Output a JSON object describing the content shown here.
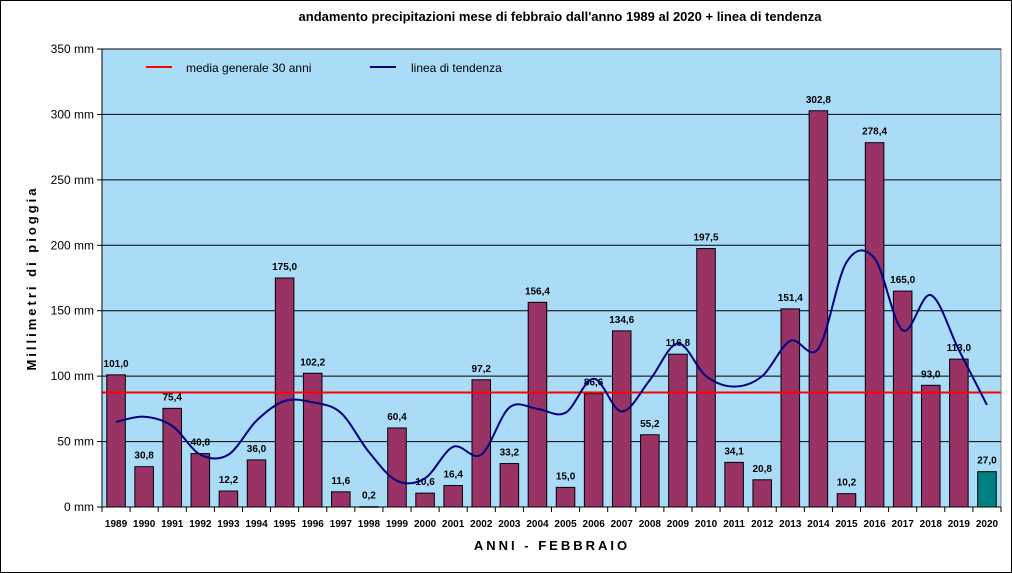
{
  "chart_data": {
    "type": "bar",
    "title": "andamento precipitazioni mese di febbraio dall'anno 1989 al 2020 + linea di tendenza",
    "xlabel": "ANNI - FEBBRAIO",
    "ylabel": "Millimetri di pioggia",
    "ylim": [
      0,
      350
    ],
    "yticks": [
      "0 mm",
      "50 mm",
      "100 mm",
      "150 mm",
      "200 mm",
      "250 mm",
      "300 mm",
      "350 mm"
    ],
    "yticks_values": [
      0,
      50,
      100,
      150,
      200,
      250,
      300,
      350
    ],
    "grid": true,
    "legend_position": "top-left",
    "categories": [
      "1989",
      "1990",
      "1991",
      "1992",
      "1993",
      "1994",
      "1995",
      "1996",
      "1997",
      "1998",
      "1999",
      "2000",
      "2001",
      "2002",
      "2003",
      "2004",
      "2005",
      "2006",
      "2007",
      "2008",
      "2009",
      "2010",
      "2011",
      "2012",
      "2013",
      "2014",
      "2015",
      "2016",
      "2017",
      "2018",
      "2019",
      "2020"
    ],
    "values": [
      101.0,
      30.8,
      75.4,
      40.8,
      12.2,
      36.0,
      175.0,
      102.2,
      11.6,
      0.2,
      60.4,
      10.6,
      16.4,
      97.2,
      33.2,
      156.4,
      15.0,
      86.6,
      134.6,
      55.2,
      116.8,
      197.5,
      34.1,
      20.8,
      151.4,
      302.8,
      10.2,
      278.4,
      165.0,
      93.0,
      113.0,
      27.0
    ],
    "data_labels": [
      "101,0",
      "30,8",
      "75,4",
      "40,8",
      "12,2",
      "36,0",
      "175,0",
      "102,2",
      "11,6",
      "0,2",
      "60,4",
      "10,6",
      "16,4",
      "97,2",
      "33,2",
      "156,4",
      "15,0",
      "86,6",
      "134,6",
      "55,2",
      "116,8",
      "197,5",
      "34,1",
      "20,8",
      "151,4",
      "302,8",
      "10,2",
      "278,4",
      "165,0",
      "93,0",
      "113,0",
      "27,0"
    ],
    "mean_line": {
      "name": "media generale 30 anni",
      "value": 87.5,
      "color": "#ff0000"
    },
    "trend_line": {
      "name": "linea di tendenza",
      "color": "#000080",
      "values": [
        65,
        69,
        62,
        40,
        40,
        66,
        81,
        80,
        72,
        42,
        20,
        22,
        46,
        40,
        76,
        75,
        72,
        98,
        73,
        97,
        125,
        100,
        92,
        100,
        127,
        121,
        187,
        190,
        135,
        162,
        120,
        78
      ]
    },
    "colors": {
      "bar": "#993366",
      "bar_last": "#008080",
      "plot_bg": "#aadcf8",
      "grid": "#000000"
    }
  }
}
